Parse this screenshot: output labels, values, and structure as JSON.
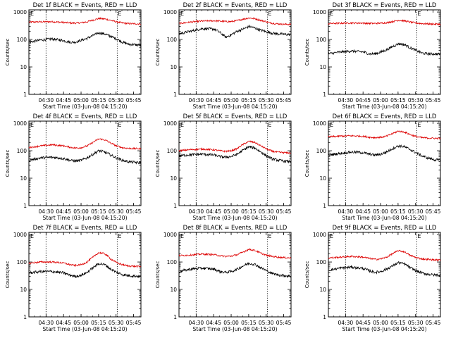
{
  "figure": {
    "x_ticks": [
      "04:30",
      "04:45",
      "05:00",
      "05:15",
      "05:30",
      "05:45"
    ],
    "y_ticks": [
      "1",
      "10",
      "100",
      "1000"
    ],
    "ylabel": "Counts/sec",
    "xlabel": "Start Time (03-Jun-08 04:15:20)",
    "corner_mark": "E"
  },
  "colors": {
    "events": "#000000",
    "lld": "#dd0000",
    "axes": "#000000"
  },
  "chart_data": [
    {
      "type": "line",
      "title": "Det 1f BLACK = Events, RED = LLD",
      "x_unit": "minutes after 04:15:20",
      "xlim": [
        0,
        96
      ],
      "ylim": [
        1,
        1200
      ],
      "yscale": "log",
      "vlines": [
        14.7,
        75.7
      ],
      "series": [
        {
          "name": "Events",
          "color": "#000000",
          "x": [
            0,
            10,
            20,
            30,
            35,
            40,
            45,
            50,
            55,
            60,
            65,
            70,
            75,
            80,
            85,
            90,
            96
          ],
          "y": [
            80,
            95,
            105,
            90,
            80,
            80,
            95,
            110,
            140,
            175,
            160,
            130,
            105,
            80,
            68,
            65,
            62
          ]
        },
        {
          "name": "LLD",
          "color": "#dd0000",
          "x": [
            0,
            10,
            20,
            30,
            35,
            40,
            45,
            50,
            55,
            60,
            65,
            70,
            75,
            80,
            85,
            90,
            96
          ],
          "y": [
            430,
            440,
            445,
            420,
            400,
            395,
            410,
            440,
            510,
            580,
            560,
            500,
            440,
            400,
            380,
            375,
            370
          ]
        }
      ]
    },
    {
      "type": "line",
      "title": "Det 2f BLACK = Events, RED = LLD",
      "x_unit": "minutes after 04:15:20",
      "xlim": [
        0,
        96
      ],
      "ylim": [
        1,
        1200
      ],
      "yscale": "log",
      "vlines": [
        14.7,
        75.7
      ],
      "series": [
        {
          "name": "Events",
          "color": "#000000",
          "x": [
            0,
            10,
            20,
            30,
            35,
            40,
            45,
            50,
            55,
            60,
            65,
            70,
            75,
            80,
            85,
            90,
            96
          ],
          "y": [
            160,
            200,
            250,
            240,
            180,
            120,
            150,
            200,
            240,
            300,
            260,
            220,
            190,
            170,
            160,
            155,
            150
          ]
        },
        {
          "name": "LLD",
          "color": "#dd0000",
          "x": [
            0,
            10,
            20,
            30,
            35,
            40,
            45,
            50,
            55,
            60,
            65,
            70,
            75,
            80,
            85,
            90,
            96
          ],
          "y": [
            380,
            430,
            470,
            480,
            470,
            450,
            450,
            490,
            550,
            610,
            570,
            500,
            440,
            390,
            370,
            360,
            355
          ]
        }
      ]
    },
    {
      "type": "line",
      "title": "Det 3f BLACK = Events, RED = LLD",
      "x_unit": "minutes after 04:15:20",
      "xlim": [
        0,
        96
      ],
      "ylim": [
        1,
        1200
      ],
      "yscale": "log",
      "vlines": [
        14.7,
        75.7
      ],
      "series": [
        {
          "name": "Events",
          "color": "#000000",
          "x": [
            0,
            10,
            20,
            30,
            35,
            40,
            45,
            50,
            55,
            60,
            65,
            70,
            75,
            80,
            85,
            90,
            96
          ],
          "y": [
            30,
            35,
            38,
            35,
            30,
            30,
            35,
            42,
            55,
            70,
            65,
            50,
            40,
            32,
            30,
            30,
            29
          ]
        },
        {
          "name": "LLD",
          "color": "#dd0000",
          "x": [
            0,
            10,
            20,
            30,
            35,
            40,
            45,
            50,
            55,
            60,
            65,
            70,
            75,
            80,
            85,
            90,
            96
          ],
          "y": [
            380,
            390,
            400,
            395,
            385,
            385,
            395,
            410,
            450,
            500,
            480,
            430,
            400,
            380,
            370,
            365,
            360
          ]
        }
      ]
    },
    {
      "type": "line",
      "title": "Det 4f BLACK = Events, RED = LLD",
      "x_unit": "minutes after 04:15:20",
      "xlim": [
        0,
        96
      ],
      "ylim": [
        1,
        1200
      ],
      "yscale": "log",
      "vlines": [
        14.7,
        75.7
      ],
      "series": [
        {
          "name": "Events",
          "color": "#000000",
          "x": [
            0,
            10,
            20,
            30,
            35,
            40,
            45,
            50,
            55,
            60,
            65,
            70,
            75,
            80,
            85,
            90,
            96
          ],
          "y": [
            45,
            55,
            58,
            52,
            45,
            42,
            45,
            55,
            75,
            100,
            90,
            70,
            55,
            45,
            40,
            38,
            36
          ]
        },
        {
          "name": "LLD",
          "color": "#dd0000",
          "x": [
            0,
            10,
            20,
            30,
            35,
            40,
            45,
            50,
            55,
            60,
            65,
            70,
            75,
            80,
            85,
            90,
            96
          ],
          "y": [
            130,
            150,
            165,
            150,
            135,
            125,
            130,
            150,
            200,
            270,
            250,
            190,
            150,
            130,
            122,
            120,
            118
          ]
        }
      ]
    },
    {
      "type": "line",
      "title": "Det 5f BLACK = Events, RED = LLD",
      "x_unit": "minutes after 04:15:20",
      "xlim": [
        0,
        96
      ],
      "ylim": [
        1,
        1200
      ],
      "yscale": "log",
      "vlines": [
        14.7,
        75.7
      ],
      "series": [
        {
          "name": "Events",
          "color": "#000000",
          "x": [
            0,
            10,
            20,
            30,
            35,
            40,
            45,
            50,
            55,
            60,
            65,
            70,
            75,
            80,
            85,
            90,
            96
          ],
          "y": [
            65,
            72,
            75,
            70,
            62,
            58,
            62,
            75,
            105,
            140,
            125,
            90,
            65,
            50,
            45,
            42,
            40
          ]
        },
        {
          "name": "LLD",
          "color": "#dd0000",
          "x": [
            0,
            10,
            20,
            30,
            35,
            40,
            45,
            50,
            55,
            60,
            65,
            70,
            75,
            80,
            85,
            90,
            96
          ],
          "y": [
            100,
            110,
            115,
            108,
            100,
            95,
            100,
            120,
            170,
            220,
            200,
            150,
            115,
            95,
            88,
            85,
            82
          ]
        }
      ]
    },
    {
      "type": "line",
      "title": "Det 6f BLACK = Events, RED = LLD",
      "x_unit": "minutes after 04:15:20",
      "xlim": [
        0,
        96
      ],
      "ylim": [
        1,
        1200
      ],
      "yscale": "log",
      "vlines": [
        14.7,
        75.7
      ],
      "series": [
        {
          "name": "Events",
          "color": "#000000",
          "x": [
            0,
            10,
            20,
            30,
            35,
            40,
            45,
            50,
            55,
            60,
            65,
            70,
            75,
            80,
            85,
            90,
            96
          ],
          "y": [
            70,
            80,
            90,
            85,
            75,
            70,
            75,
            90,
            120,
            150,
            140,
            110,
            85,
            65,
            55,
            48,
            45
          ]
        },
        {
          "name": "LLD",
          "color": "#dd0000",
          "x": [
            0,
            10,
            20,
            30,
            35,
            40,
            45,
            50,
            55,
            60,
            65,
            70,
            75,
            80,
            85,
            90,
            96
          ],
          "y": [
            320,
            340,
            350,
            335,
            310,
            300,
            310,
            340,
            420,
            520,
            480,
            390,
            330,
            300,
            290,
            285,
            280
          ]
        }
      ]
    },
    {
      "type": "line",
      "title": "Det 7f BLACK = Events, RED = LLD",
      "x_unit": "minutes after 04:15:20",
      "xlim": [
        0,
        96
      ],
      "ylim": [
        1,
        1200
      ],
      "yscale": "log",
      "vlines": [
        14.7,
        75.7
      ],
      "series": [
        {
          "name": "Events",
          "color": "#000000",
          "x": [
            0,
            10,
            20,
            30,
            35,
            40,
            45,
            50,
            55,
            60,
            65,
            70,
            75,
            80,
            85,
            90,
            96
          ],
          "y": [
            40,
            45,
            45,
            40,
            33,
            30,
            33,
            42,
            62,
            88,
            80,
            55,
            42,
            35,
            32,
            31,
            30
          ]
        },
        {
          "name": "LLD",
          "color": "#dd0000",
          "x": [
            0,
            10,
            20,
            30,
            35,
            40,
            45,
            50,
            55,
            60,
            65,
            70,
            75,
            80,
            85,
            90,
            96
          ],
          "y": [
            90,
            100,
            100,
            92,
            80,
            75,
            80,
            100,
            150,
            220,
            200,
            130,
            95,
            80,
            72,
            70,
            68
          ]
        }
      ]
    },
    {
      "type": "line",
      "title": "Det 8f BLACK = Events, RED = LLD",
      "x_unit": "minutes after 04:15:20",
      "xlim": [
        0,
        96
      ],
      "ylim": [
        1,
        1200
      ],
      "yscale": "log",
      "vlines": [
        14.7,
        75.7
      ],
      "series": [
        {
          "name": "Events",
          "color": "#000000",
          "x": [
            0,
            10,
            20,
            30,
            35,
            40,
            45,
            50,
            55,
            60,
            65,
            70,
            75,
            80,
            85,
            90,
            96
          ],
          "y": [
            45,
            55,
            60,
            55,
            45,
            42,
            45,
            55,
            72,
            90,
            82,
            62,
            48,
            38,
            34,
            32,
            30
          ]
        },
        {
          "name": "LLD",
          "color": "#dd0000",
          "x": [
            0,
            10,
            20,
            30,
            35,
            40,
            45,
            50,
            55,
            60,
            65,
            70,
            75,
            80,
            85,
            90,
            96
          ],
          "y": [
            170,
            180,
            195,
            185,
            170,
            160,
            165,
            185,
            230,
            290,
            265,
            210,
            175,
            160,
            150,
            145,
            140
          ]
        }
      ]
    },
    {
      "type": "line",
      "title": "Det 9f BLACK = Events, RED = LLD",
      "x_unit": "minutes after 04:15:20",
      "xlim": [
        0,
        96
      ],
      "ylim": [
        1,
        1200
      ],
      "yscale": "log",
      "vlines": [
        14.7,
        75.7
      ],
      "series": [
        {
          "name": "Events",
          "color": "#000000",
          "x": [
            0,
            10,
            20,
            30,
            35,
            40,
            45,
            50,
            55,
            60,
            65,
            70,
            75,
            80,
            85,
            90,
            96
          ],
          "y": [
            50,
            60,
            65,
            58,
            48,
            42,
            45,
            55,
            72,
            95,
            85,
            62,
            48,
            40,
            36,
            34,
            33
          ]
        },
        {
          "name": "LLD",
          "color": "#dd0000",
          "x": [
            0,
            10,
            20,
            30,
            35,
            40,
            45,
            50,
            55,
            60,
            65,
            70,
            75,
            80,
            85,
            90,
            96
          ],
          "y": [
            140,
            150,
            160,
            150,
            135,
            125,
            130,
            150,
            200,
            260,
            235,
            175,
            145,
            130,
            125,
            120,
            118
          ]
        }
      ]
    }
  ]
}
